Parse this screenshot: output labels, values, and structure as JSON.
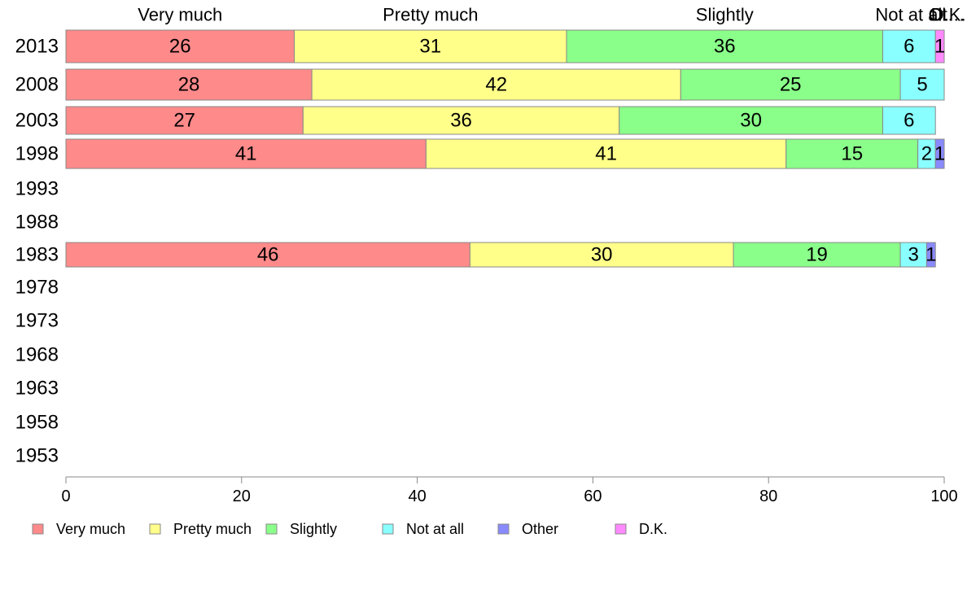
{
  "chart_data": {
    "type": "bar",
    "orientation": "horizontal",
    "stacked": true,
    "categories": [
      "2013",
      "2008",
      "2003",
      "1998",
      "1993",
      "1988",
      "1983",
      "1978",
      "1973",
      "1968",
      "1963",
      "1958",
      "1953"
    ],
    "series": [
      {
        "name": "Very much",
        "color": "#FF8A8A",
        "values": [
          26,
          28,
          27,
          41,
          null,
          null,
          46,
          null,
          null,
          null,
          null,
          null,
          null
        ]
      },
      {
        "name": "Pretty much",
        "color": "#FFFF8A",
        "values": [
          31,
          42,
          36,
          41,
          null,
          null,
          30,
          null,
          null,
          null,
          null,
          null,
          null
        ]
      },
      {
        "name": "Slightly",
        "color": "#8AFF8A",
        "values": [
          36,
          25,
          30,
          15,
          null,
          null,
          19,
          null,
          null,
          null,
          null,
          null,
          null
        ]
      },
      {
        "name": "Not at all",
        "color": "#8AFFFF",
        "values": [
          6,
          5,
          6,
          2,
          null,
          null,
          3,
          null,
          null,
          null,
          null,
          null,
          null
        ]
      },
      {
        "name": "Other",
        "color": "#8A8AFF",
        "values": [
          0,
          0,
          0,
          1,
          null,
          null,
          1,
          null,
          null,
          null,
          null,
          null,
          null
        ]
      },
      {
        "name": "D.K.",
        "color": "#FF8AFF",
        "values": [
          1,
          0,
          0,
          0,
          null,
          null,
          0,
          null,
          null,
          null,
          null,
          null,
          null
        ]
      }
    ],
    "segment_labels": [
      [
        "26",
        "31",
        "36",
        "6",
        "",
        "1"
      ],
      [
        "28",
        "42",
        "25",
        "5",
        "",
        ""
      ],
      [
        "27",
        "36",
        "30",
        "6",
        "",
        ""
      ],
      [
        "41",
        "41",
        "15",
        "2",
        "1",
        ""
      ],
      [],
      [],
      [
        "46",
        "30",
        "19",
        "3",
        "1",
        ""
      ],
      [],
      [],
      [],
      [],
      [],
      []
    ],
    "top_labels": [
      "Very much",
      "Pretty much",
      "Slightly",
      "Not at all",
      "Ot…",
      "D.K."
    ],
    "xlim": [
      0,
      100
    ],
    "xticks": [
      0,
      20,
      40,
      60,
      80,
      100
    ],
    "xtick_labels": [
      "0",
      "20",
      "40",
      "60",
      "80",
      "100"
    ],
    "grid": false,
    "legend_position": "bottom-left",
    "bar_stroke": "#888888",
    "axis_color": "#888888"
  }
}
